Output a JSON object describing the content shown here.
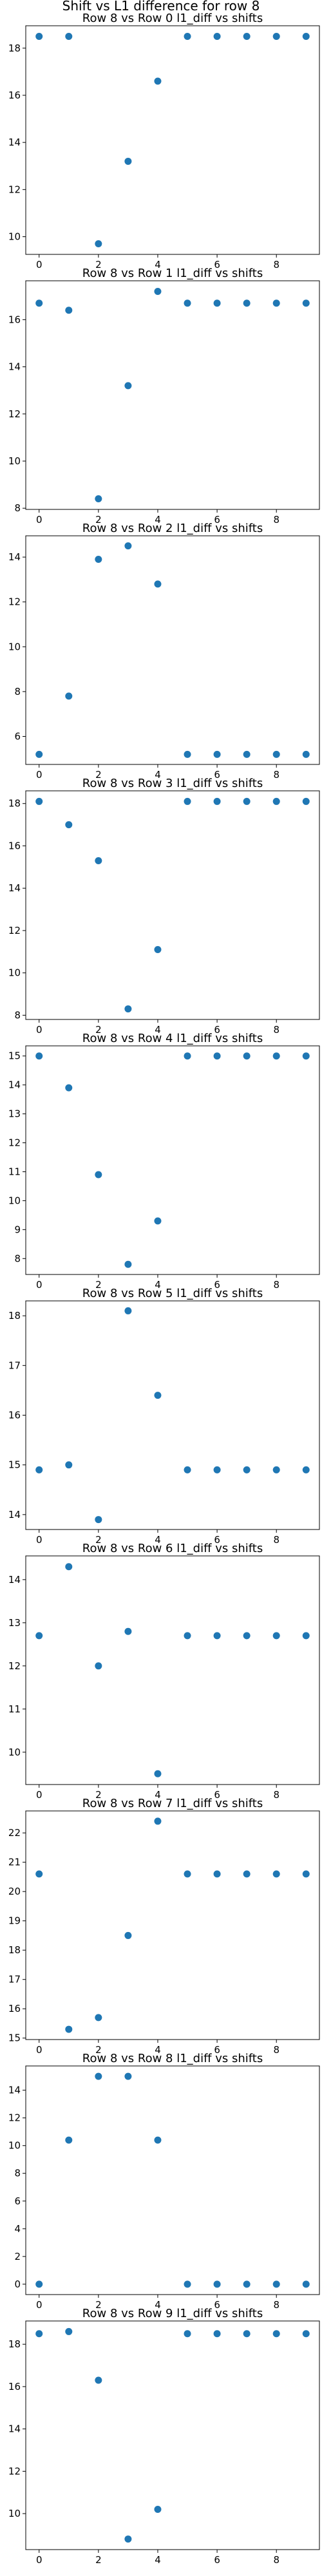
{
  "figure": {
    "title": "Shift vs L1 difference for row 8",
    "marker_color": "#1f77b4"
  },
  "chart_data": [
    {
      "type": "scatter",
      "title": "Row 8 vs Row 0 l1_diff vs shifts",
      "x": [
        0,
        1,
        2,
        3,
        4,
        5,
        6,
        7,
        8,
        9
      ],
      "values": [
        18.5,
        18.5,
        9.7,
        13.2,
        16.6,
        18.5,
        18.5,
        18.5,
        18.5,
        18.5
      ],
      "xlim": [
        -0.45,
        9.45
      ],
      "ylim": [
        9.25,
        18.95
      ],
      "xticks": [
        0,
        2,
        4,
        6,
        8
      ],
      "yticks": [
        10,
        12,
        14,
        16,
        18
      ],
      "grid": false
    },
    {
      "type": "scatter",
      "title": "Row 8 vs Row 1 l1_diff vs shifts",
      "x": [
        0,
        1,
        2,
        3,
        4,
        5,
        6,
        7,
        8,
        9
      ],
      "values": [
        16.7,
        16.4,
        8.4,
        13.2,
        17.2,
        16.7,
        16.7,
        16.7,
        16.7,
        16.7
      ],
      "xlim": [
        -0.45,
        9.45
      ],
      "ylim": [
        7.95,
        17.65
      ],
      "xticks": [
        0,
        2,
        4,
        6,
        8
      ],
      "yticks": [
        8,
        10,
        12,
        14,
        16
      ],
      "grid": false
    },
    {
      "type": "scatter",
      "title": "Row 8 vs Row 2 l1_diff vs shifts",
      "x": [
        0,
        1,
        2,
        3,
        4,
        5,
        6,
        7,
        8,
        9
      ],
      "values": [
        5.2,
        7.8,
        13.9,
        14.5,
        12.8,
        5.2,
        5.2,
        5.2,
        5.2,
        5.2
      ],
      "xlim": [
        -0.45,
        9.45
      ],
      "ylim": [
        4.75,
        14.95
      ],
      "xticks": [
        0,
        2,
        4,
        6,
        8
      ],
      "yticks": [
        6,
        8,
        10,
        12,
        14
      ],
      "grid": false
    },
    {
      "type": "scatter",
      "title": "Row 8 vs Row 3 l1_diff vs shifts",
      "x": [
        0,
        1,
        2,
        3,
        4,
        5,
        6,
        7,
        8,
        9
      ],
      "values": [
        18.1,
        17.0,
        15.3,
        8.3,
        11.1,
        18.1,
        18.1,
        18.1,
        18.1,
        18.1
      ],
      "xlim": [
        -0.45,
        9.45
      ],
      "ylim": [
        7.8,
        18.6
      ],
      "xticks": [
        0,
        2,
        4,
        6,
        8
      ],
      "yticks": [
        8,
        10,
        12,
        14,
        16,
        18
      ],
      "grid": false
    },
    {
      "type": "scatter",
      "title": "Row 8 vs Row 4 l1_diff vs shifts",
      "x": [
        0,
        1,
        2,
        3,
        4,
        5,
        6,
        7,
        8,
        9
      ],
      "values": [
        15.0,
        13.9,
        10.9,
        7.8,
        9.3,
        15.0,
        15.0,
        15.0,
        15.0,
        15.0
      ],
      "xlim": [
        -0.45,
        9.45
      ],
      "ylim": [
        7.45,
        15.35
      ],
      "xticks": [
        0,
        2,
        4,
        6,
        8
      ],
      "yticks": [
        8,
        9,
        10,
        11,
        12,
        13,
        14,
        15
      ],
      "grid": false
    },
    {
      "type": "scatter",
      "title": "Row 8 vs Row 5 l1_diff vs shifts",
      "x": [
        0,
        1,
        2,
        3,
        4,
        5,
        6,
        7,
        8,
        9
      ],
      "values": [
        14.9,
        15.0,
        13.9,
        18.1,
        16.4,
        14.9,
        14.9,
        14.9,
        14.9,
        14.9
      ],
      "xlim": [
        -0.45,
        9.45
      ],
      "ylim": [
        13.7,
        18.3
      ],
      "xticks": [
        0,
        2,
        4,
        6,
        8
      ],
      "yticks": [
        14,
        15,
        16,
        17,
        18
      ],
      "grid": false
    },
    {
      "type": "scatter",
      "title": "Row 8 vs Row 6 l1_diff vs shifts",
      "x": [
        0,
        1,
        2,
        3,
        4,
        5,
        6,
        7,
        8,
        9
      ],
      "values": [
        12.7,
        14.3,
        12.0,
        12.8,
        9.5,
        12.7,
        12.7,
        12.7,
        12.7,
        12.7
      ],
      "xlim": [
        -0.45,
        9.45
      ],
      "ylim": [
        9.25,
        14.55
      ],
      "xticks": [
        0,
        2,
        4,
        6,
        8
      ],
      "yticks": [
        10,
        11,
        12,
        13,
        14
      ],
      "grid": false
    },
    {
      "type": "scatter",
      "title": "Row 8 vs Row 7 l1_diff vs shifts",
      "x": [
        0,
        1,
        2,
        3,
        4,
        5,
        6,
        7,
        8,
        9
      ],
      "values": [
        20.6,
        15.3,
        15.7,
        18.5,
        22.4,
        20.6,
        20.6,
        20.6,
        20.6,
        20.6
      ],
      "xlim": [
        -0.45,
        9.45
      ],
      "ylim": [
        14.95,
        22.75
      ],
      "xticks": [
        0,
        2,
        4,
        6,
        8
      ],
      "yticks": [
        15,
        16,
        17,
        18,
        19,
        20,
        21,
        22
      ],
      "grid": false
    },
    {
      "type": "scatter",
      "title": "Row 8 vs Row 8 l1_diff vs shifts",
      "x": [
        0,
        1,
        2,
        3,
        4,
        5,
        6,
        7,
        8,
        9
      ],
      "values": [
        0.0,
        10.4,
        15.0,
        15.0,
        10.4,
        0.0,
        0.0,
        0.0,
        0.0,
        0.0
      ],
      "xlim": [
        -0.45,
        9.45
      ],
      "ylim": [
        -0.75,
        15.75
      ],
      "xticks": [
        0,
        2,
        4,
        6,
        8
      ],
      "yticks": [
        0,
        2,
        4,
        6,
        8,
        10,
        12,
        14
      ],
      "grid": false
    },
    {
      "type": "scatter",
      "title": "Row 8 vs Row 9 l1_diff vs shifts",
      "x": [
        0,
        1,
        2,
        3,
        4,
        5,
        6,
        7,
        8,
        9
      ],
      "values": [
        18.5,
        18.6,
        16.3,
        8.8,
        10.2,
        18.5,
        18.5,
        18.5,
        18.5,
        18.5
      ],
      "xlim": [
        -0.45,
        9.45
      ],
      "ylim": [
        8.3,
        19.1
      ],
      "xticks": [
        0,
        2,
        4,
        6,
        8
      ],
      "yticks": [
        10,
        12,
        14,
        16,
        18
      ],
      "grid": false
    }
  ]
}
